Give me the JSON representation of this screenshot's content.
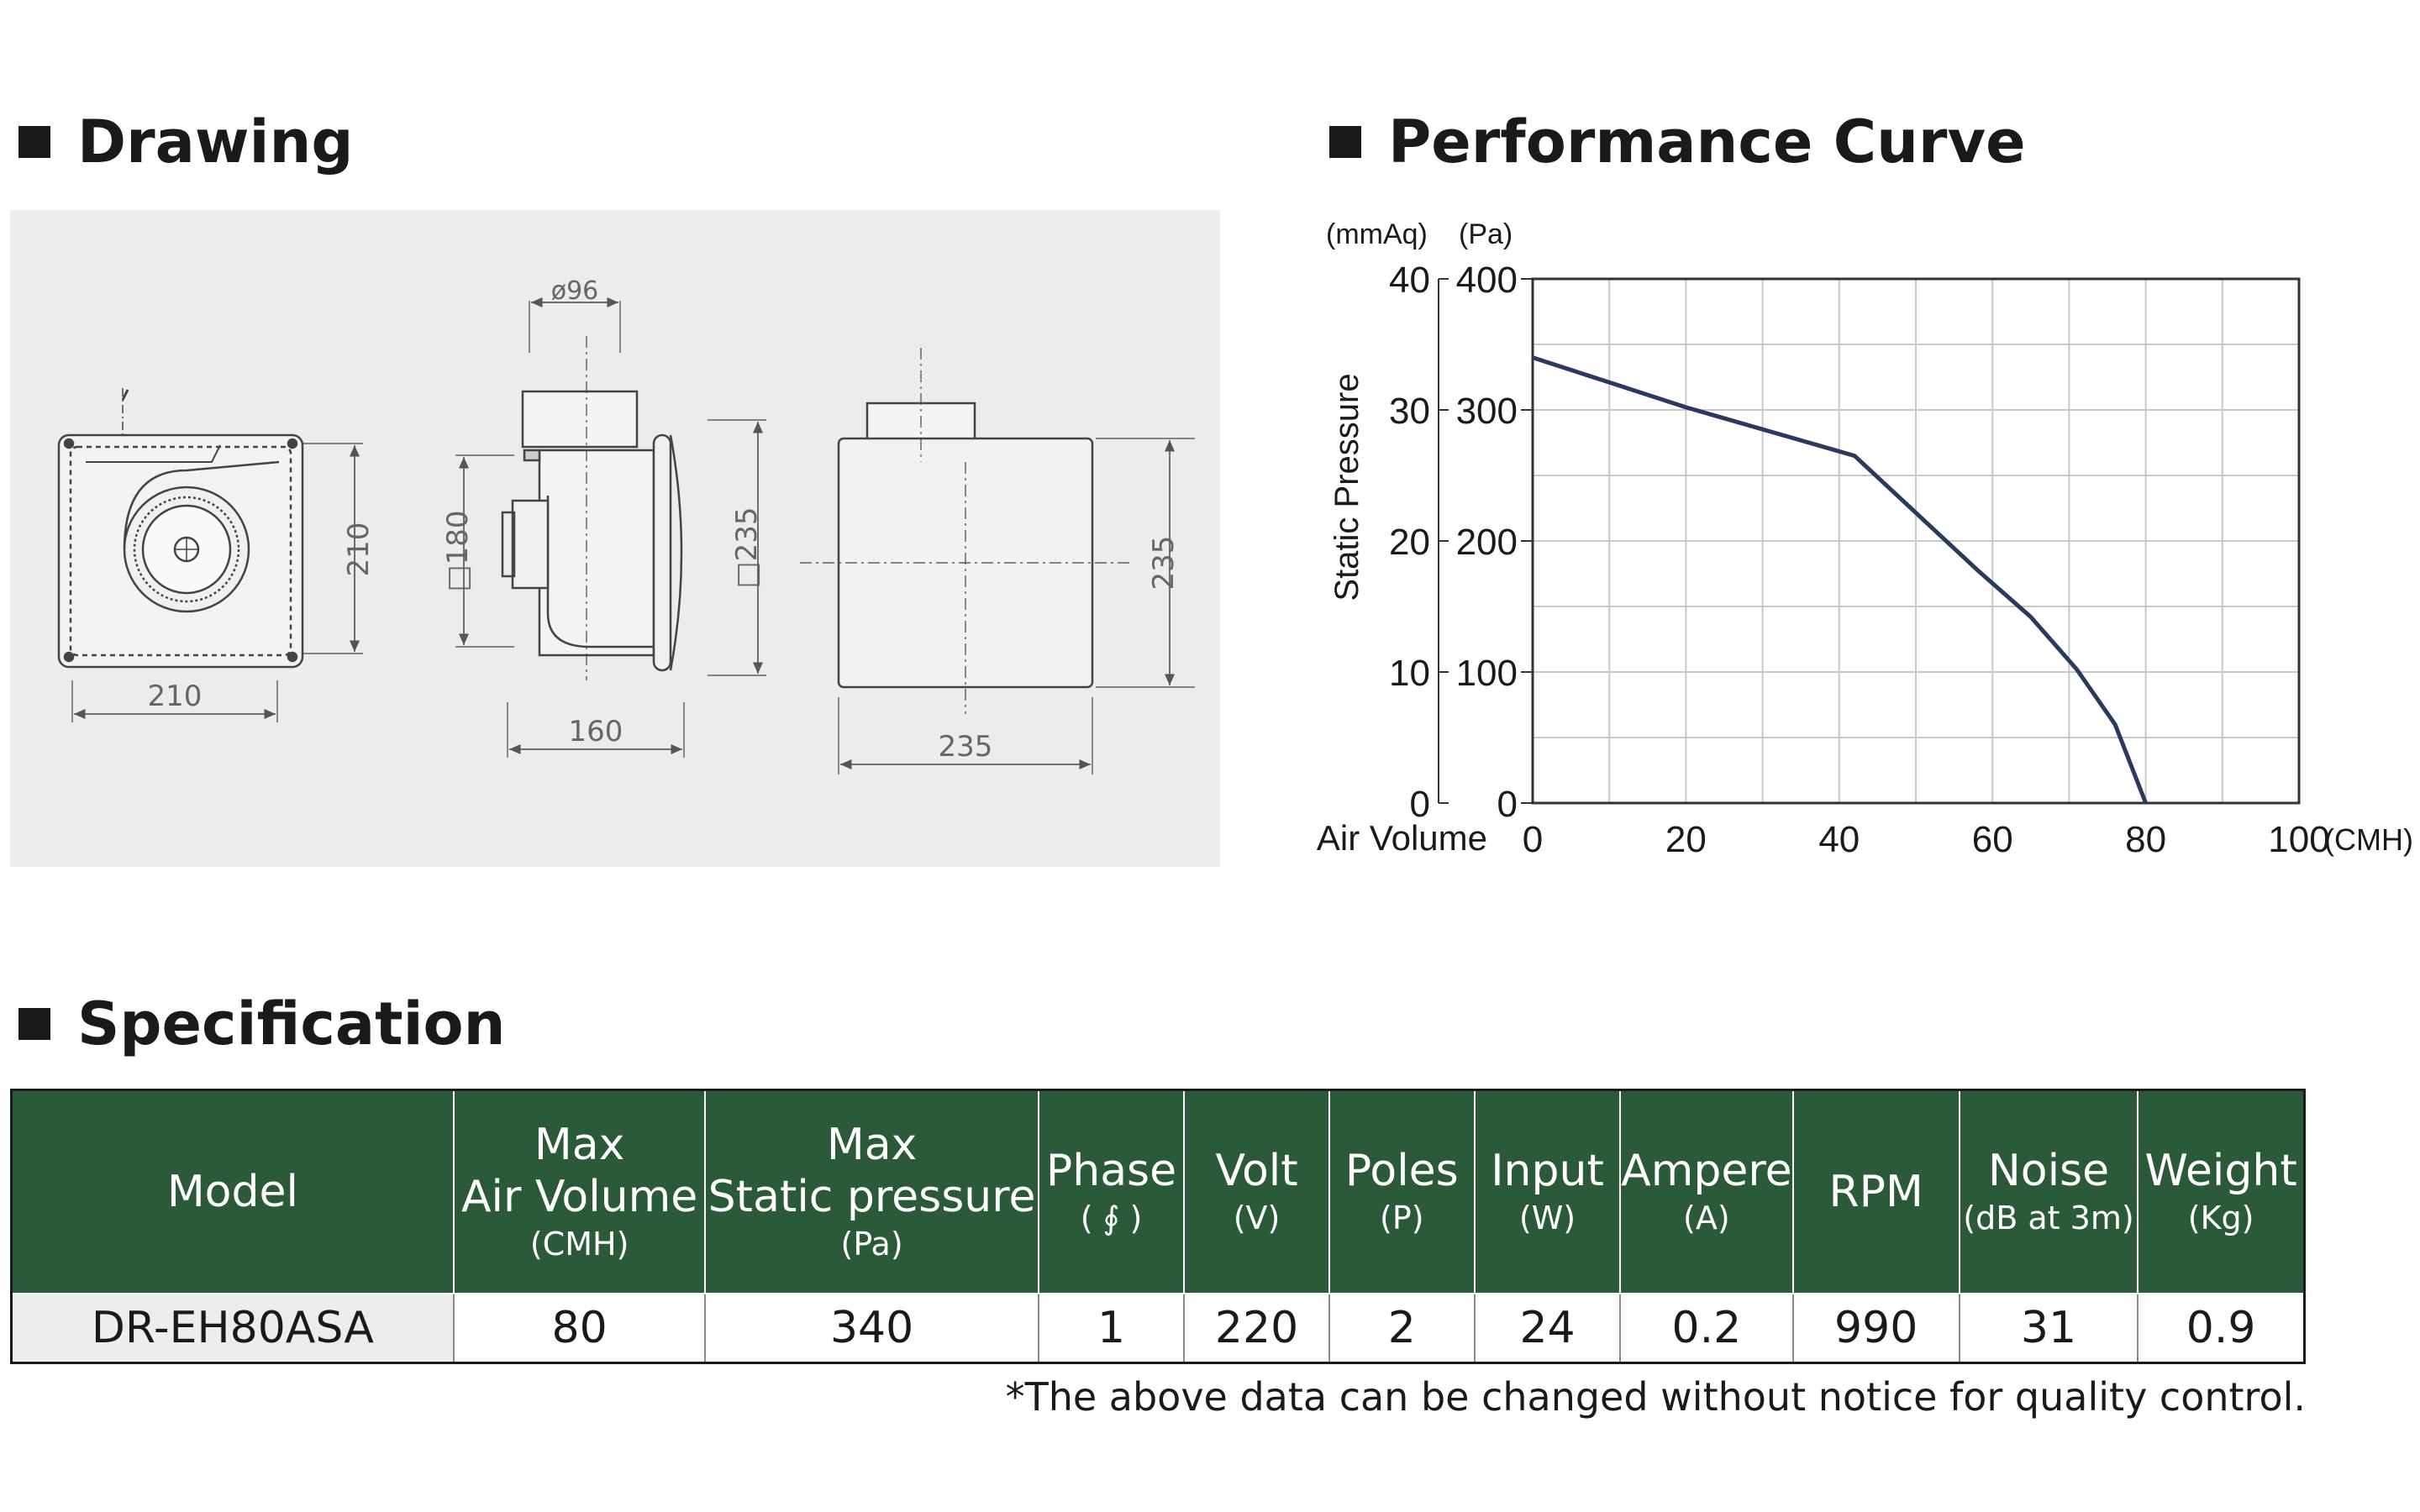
{
  "sections": {
    "drawing": "Drawing",
    "performance": "Performance Curve",
    "specification": "Specification"
  },
  "drawing": {
    "dims": {
      "front_height": "210",
      "front_width": "210",
      "side_diameter": "ø96",
      "side_square": "□180",
      "side_height": "□235",
      "side_depth": "160",
      "back_height": "235",
      "back_width": "235"
    }
  },
  "chart_data": {
    "type": "line",
    "title": "",
    "xlabel": "Air Volume",
    "x_unit": "(CMH)",
    "ylabel": "Static Pressure",
    "y_units": [
      "(mmAq)",
      "(Pa)"
    ],
    "xlim": [
      0,
      100
    ],
    "ylim": [
      0,
      400
    ],
    "x_ticks": [
      "0",
      "20",
      "40",
      "60",
      "80",
      "100"
    ],
    "y_ticks_pa": [
      "0",
      "100",
      "200",
      "300",
      "400"
    ],
    "y_ticks_mmaq": [
      "0",
      "10",
      "20",
      "30",
      "40"
    ],
    "grid": true,
    "line_color": "#2a3a5e",
    "series": [
      {
        "x": [
          0,
          20,
          42,
          58,
          65,
          71,
          76,
          80
        ],
        "y": [
          340,
          302,
          265,
          178,
          142,
          102,
          60,
          0
        ]
      }
    ]
  },
  "spec": {
    "headers": [
      {
        "main": [
          "Model"
        ],
        "unit": ""
      },
      {
        "main": [
          "Max",
          "Air Volume"
        ],
        "unit": "(CMH)"
      },
      {
        "main": [
          "Max",
          "Static pressure"
        ],
        "unit": "(Pa)"
      },
      {
        "main": [
          "Phase"
        ],
        "unit": "( ∮ )"
      },
      {
        "main": [
          "Volt"
        ],
        "unit": "(V)"
      },
      {
        "main": [
          "Poles"
        ],
        "unit": "(P)"
      },
      {
        "main": [
          "Input"
        ],
        "unit": "(W)"
      },
      {
        "main": [
          "Ampere"
        ],
        "unit": "(A)"
      },
      {
        "main": [
          "RPM"
        ],
        "unit": ""
      },
      {
        "main": [
          "Noise"
        ],
        "unit": "(dB at 3m)"
      },
      {
        "main": [
          "Weight"
        ],
        "unit": "(Kg)"
      }
    ],
    "rows": [
      [
        "DR-EH80ASA",
        "80",
        "340",
        "1",
        "220",
        "2",
        "24",
        "0.2",
        "990",
        "31",
        "0.9"
      ]
    ]
  },
  "footnote": "*The above data can be changed without notice for quality control.",
  "colors": {
    "header_green": "#2b5a38",
    "drawing_bg": "#ececec",
    "curve": "#2a3a5e"
  }
}
